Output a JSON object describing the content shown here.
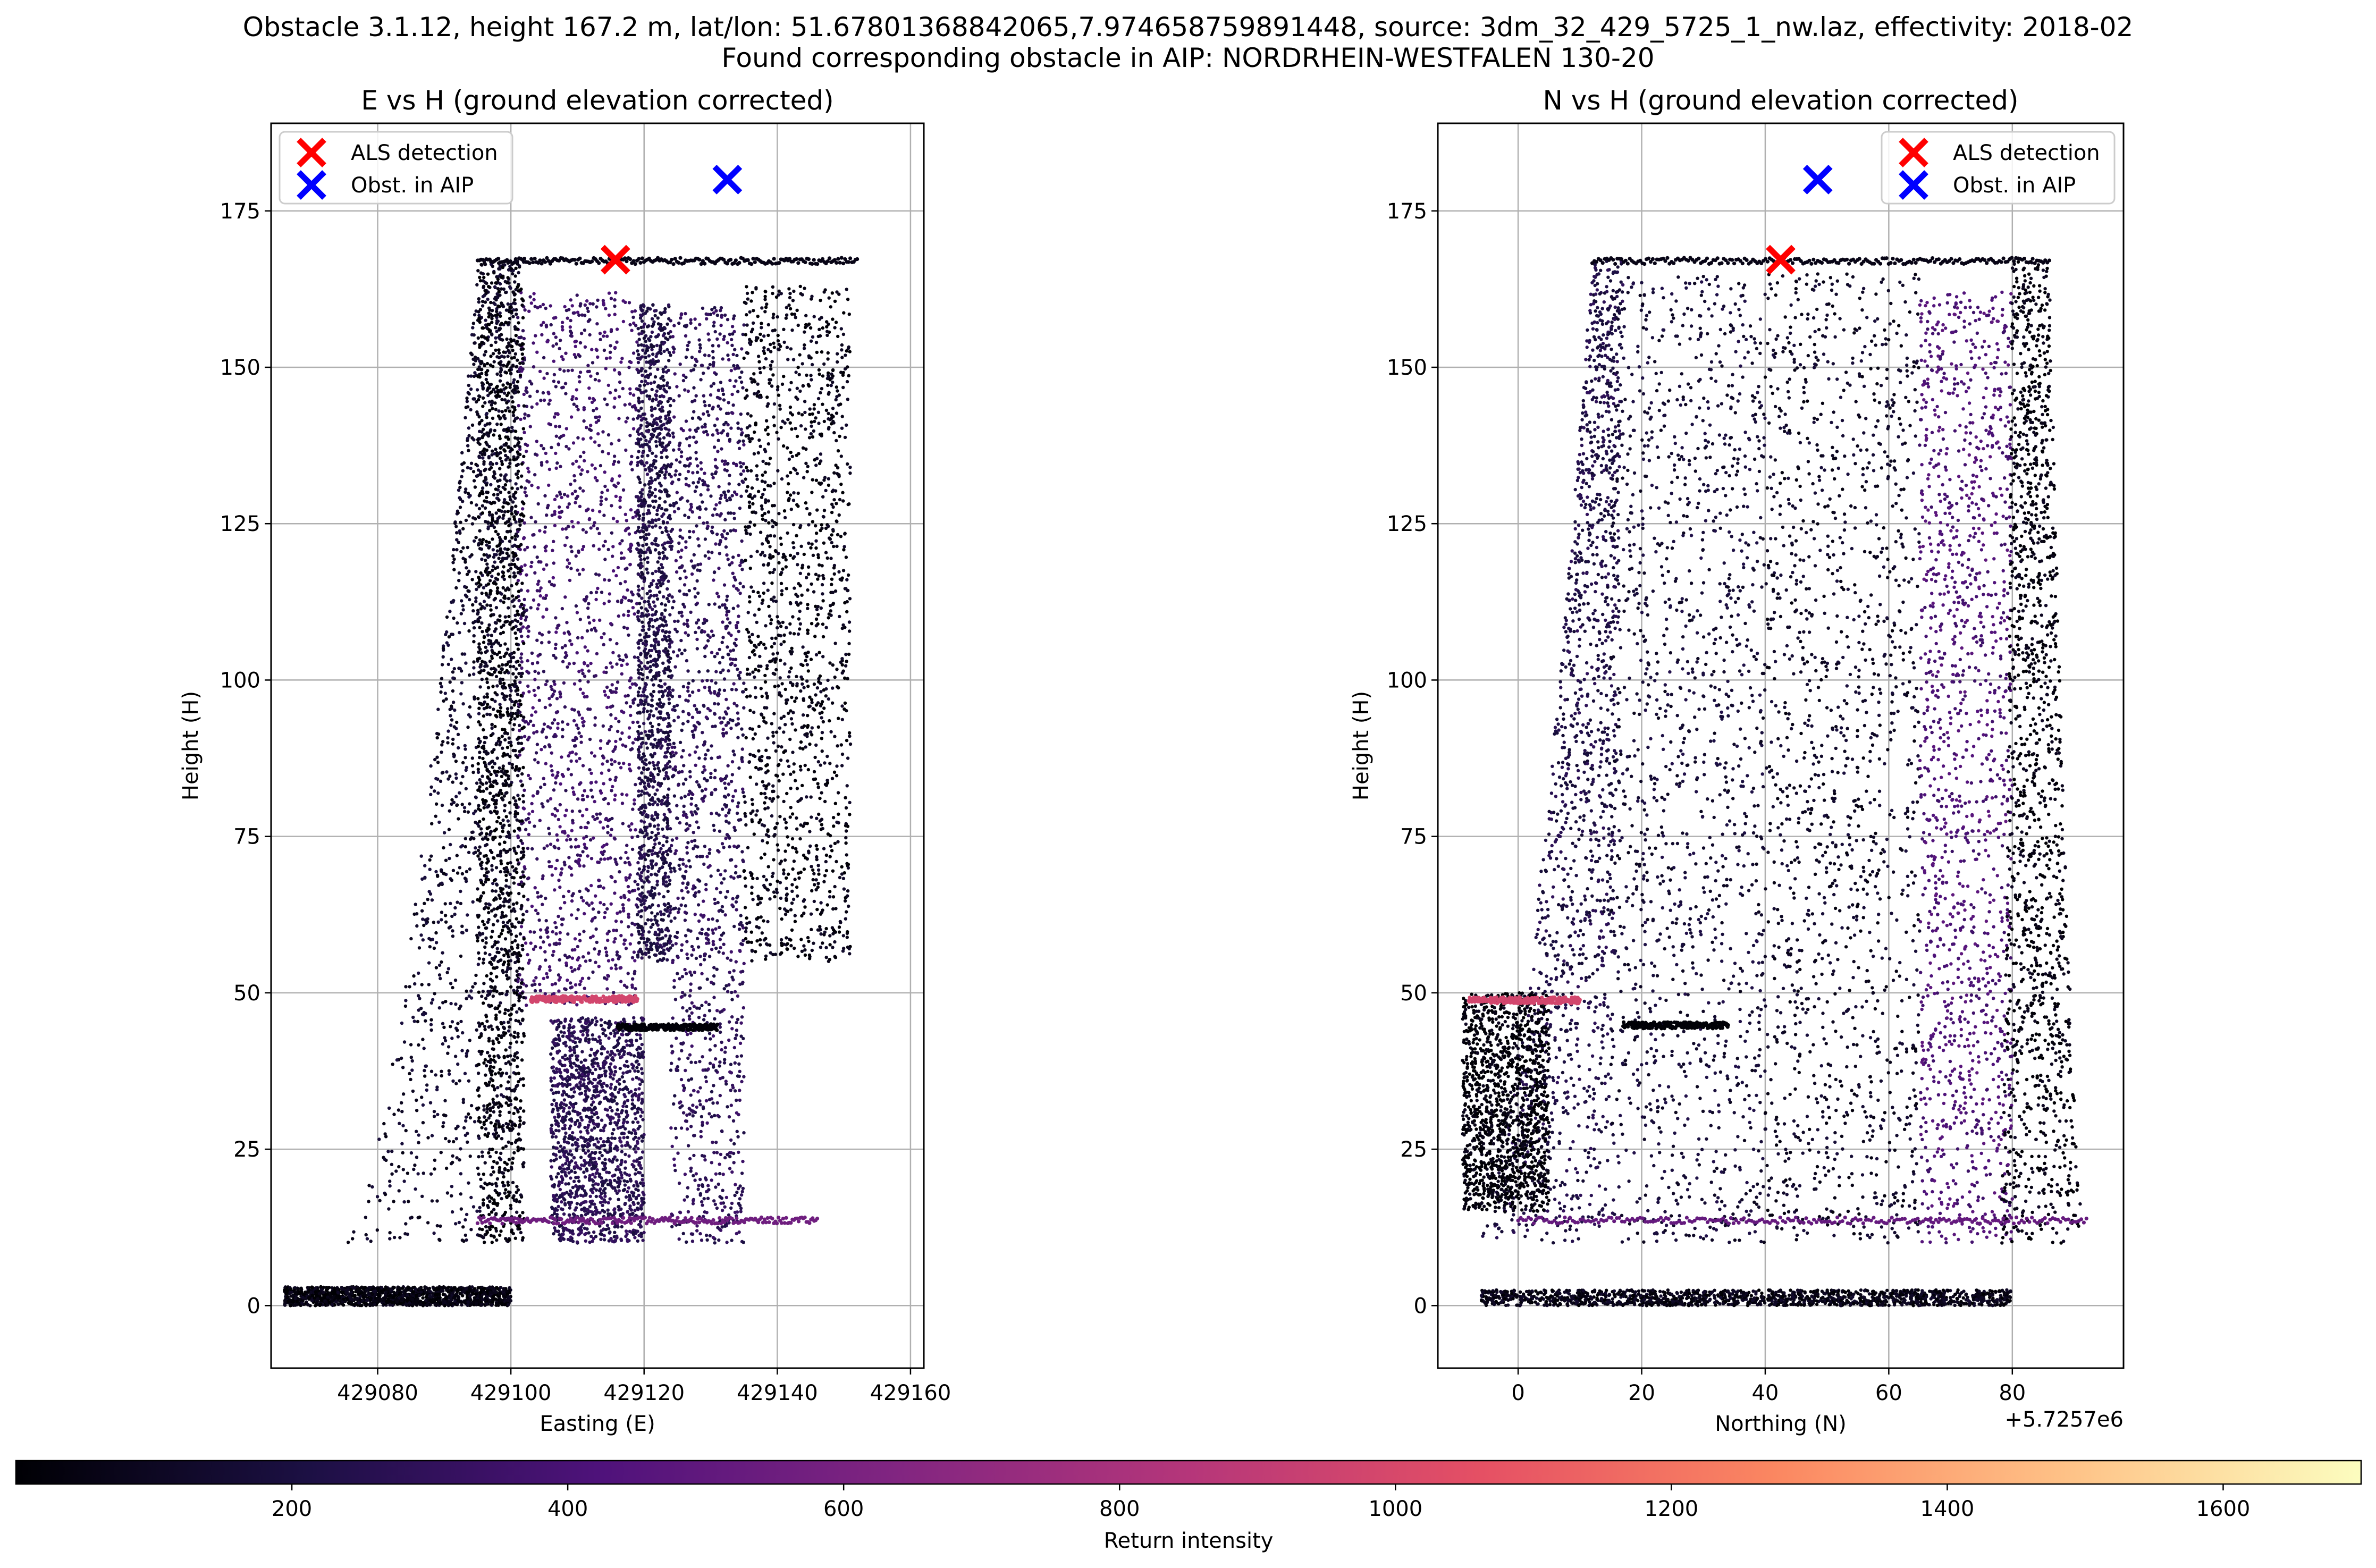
{
  "figure": {
    "title_line1": "Obstacle 3.1.12, height 167.2 m, lat/lon: 51.67801368842065,7.974658759891448, source: 3dm_32_429_5725_1_nw.laz, effectivity: 2018-02",
    "title_line2": "Found corresponding obstacle in AIP: NORDRHEIN-WESTFALEN 130-20"
  },
  "colormap": {
    "name": "magma",
    "stops": [
      "#000004",
      "#1c1044",
      "#4f127b",
      "#812581",
      "#b5367a",
      "#e55064",
      "#fb8761",
      "#fec287",
      "#fcfdbf"
    ]
  },
  "colorbar": {
    "label": "Return intensity",
    "range": [
      0,
      1700
    ],
    "ticks": [
      200,
      400,
      600,
      800,
      1000,
      1200,
      1400,
      1600
    ],
    "tick_labels": [
      "200",
      "400",
      "600",
      "800",
      "1000",
      "1200",
      "1400",
      "1600"
    ]
  },
  "chart_data": [
    {
      "type": "scatter",
      "title": "E vs H (ground elevation corrected)",
      "xlabel": "Easting (E)",
      "ylabel": "Height (H)",
      "xlim": [
        429064,
        429162
      ],
      "ylim": [
        -10,
        189
      ],
      "xticks": [
        429080,
        429100,
        429120,
        429140,
        429160
      ],
      "xtick_labels": [
        "429080",
        "429100",
        "429120",
        "429140",
        "429160"
      ],
      "yticks": [
        0,
        25,
        50,
        75,
        100,
        125,
        150,
        175
      ],
      "ytick_labels": [
        "0",
        "25",
        "50",
        "75",
        "100",
        "125",
        "150",
        "175"
      ],
      "offset_label": "",
      "grid": true,
      "legend_position": "upper-left",
      "series": [
        {
          "name": "ALS detection",
          "marker": "x",
          "color": "#ff0000",
          "x": [
            429115.7
          ],
          "y": [
            167.2
          ]
        },
        {
          "name": "Obst. in AIP",
          "marker": "x",
          "color": "#0000ff",
          "x": [
            429132.5
          ],
          "y": [
            180.0
          ]
        }
      ],
      "point_cloud": {
        "color_by": "Return intensity",
        "regions": [
          {
            "shape": "curved-wall",
            "x_bottom": [
              429075,
              429102
            ],
            "x_top": [
              429095,
              429101
            ],
            "y": [
              10,
              167
            ],
            "intensity": 120
          },
          {
            "shape": "band",
            "x": [
              429101,
              429119
            ],
            "y": [
              48,
              162
            ],
            "intensity": 340
          },
          {
            "shape": "band",
            "x": [
              429095,
              429102
            ],
            "y": [
              10,
              167
            ],
            "intensity": 40
          },
          {
            "shape": "band",
            "x": [
              429119,
              429124
            ],
            "y": [
              55,
              160
            ],
            "intensity": 220
          },
          {
            "shape": "band",
            "x": [
              429124,
              429135
            ],
            "y": [
              10,
              160
            ],
            "intensity": 280
          },
          {
            "shape": "band",
            "x": [
              429135,
              429151
            ],
            "y": [
              55,
              163
            ],
            "intensity": 60
          },
          {
            "shape": "band",
            "x": [
              429106,
              429120
            ],
            "y": [
              10,
              46
            ],
            "intensity": 260
          },
          {
            "shape": "band",
            "x": [
              429066,
              429100
            ],
            "y": [
              0,
              3
            ],
            "intensity": 30
          }
        ],
        "lines": [
          {
            "x": [
              429095,
              429152
            ],
            "y": [
              167,
              167
            ],
            "intensity": 60
          },
          {
            "x": [
              429095,
              429146
            ],
            "y": [
              13.6,
              13.6
            ],
            "intensity": 560
          },
          {
            "x": [
              429103,
              429119
            ],
            "y": [
              49,
              49
            ],
            "intensity": 980
          },
          {
            "x": [
              429116,
              429131
            ],
            "y": [
              44.5,
              44.5
            ],
            "intensity": 10
          }
        ]
      }
    },
    {
      "type": "scatter",
      "title": "N vs H (ground elevation corrected)",
      "xlabel": "Northing (N)",
      "ylabel": "Height (H)",
      "xlim": [
        -13,
        98
      ],
      "ylim": [
        -10,
        189
      ],
      "xticks": [
        0,
        20,
        40,
        60,
        80
      ],
      "xtick_labels": [
        "0",
        "20",
        "40",
        "60",
        "80"
      ],
      "yticks": [
        0,
        25,
        50,
        75,
        100,
        125,
        150,
        175
      ],
      "ytick_labels": [
        "0",
        "25",
        "50",
        "75",
        "100",
        "125",
        "150",
        "175"
      ],
      "offset_label": "+5.7257e6",
      "grid": true,
      "legend_position": "upper-right",
      "series": [
        {
          "name": "ALS detection",
          "marker": "x",
          "color": "#ff0000",
          "x": [
            42.5
          ],
          "y": [
            167.2
          ]
        },
        {
          "name": "Obst. in AIP",
          "marker": "x",
          "color": "#0000ff",
          "x": [
            48.5
          ],
          "y": [
            180.0
          ]
        }
      ],
      "point_cloud": {
        "color_by": "Return intensity",
        "regions": [
          {
            "shape": "curved-wall",
            "x_bottom": [
              -7,
              14
            ],
            "x_top": [
              12,
              17
            ],
            "y": [
              10,
              167
            ],
            "intensity": 220
          },
          {
            "shape": "band",
            "x": [
              15,
              40
            ],
            "y": [
              10,
              165
            ],
            "intensity": 160
          },
          {
            "shape": "band",
            "x": [
              40,
              65
            ],
            "y": [
              10,
              165
            ],
            "intensity": 110
          },
          {
            "shape": "band",
            "x": [
              65,
              80
            ],
            "y": [
              10,
              162
            ],
            "intensity": 420
          },
          {
            "shape": "curved-wall",
            "x_bottom": [
              78,
              92
            ],
            "x_top": [
              80,
              86
            ],
            "y": [
              10,
              167
            ],
            "intensity": 40
          },
          {
            "shape": "band",
            "x": [
              -9,
              5
            ],
            "y": [
              15,
              50
            ],
            "intensity": 20
          },
          {
            "shape": "band",
            "x": [
              -6,
              80
            ],
            "y": [
              0,
              2.5
            ],
            "intensity": 60
          }
        ],
        "lines": [
          {
            "x": [
              12,
              86
            ],
            "y": [
              167,
              167
            ],
            "intensity": 60
          },
          {
            "x": [
              0,
              92
            ],
            "y": [
              13.6,
              13.6
            ],
            "intensity": 520
          },
          {
            "x": [
              -8,
              10
            ],
            "y": [
              48.8,
              48.8
            ],
            "intensity": 980
          },
          {
            "x": [
              17,
              34
            ],
            "y": [
              44.8,
              44.8
            ],
            "intensity": 10
          }
        ]
      }
    }
  ]
}
